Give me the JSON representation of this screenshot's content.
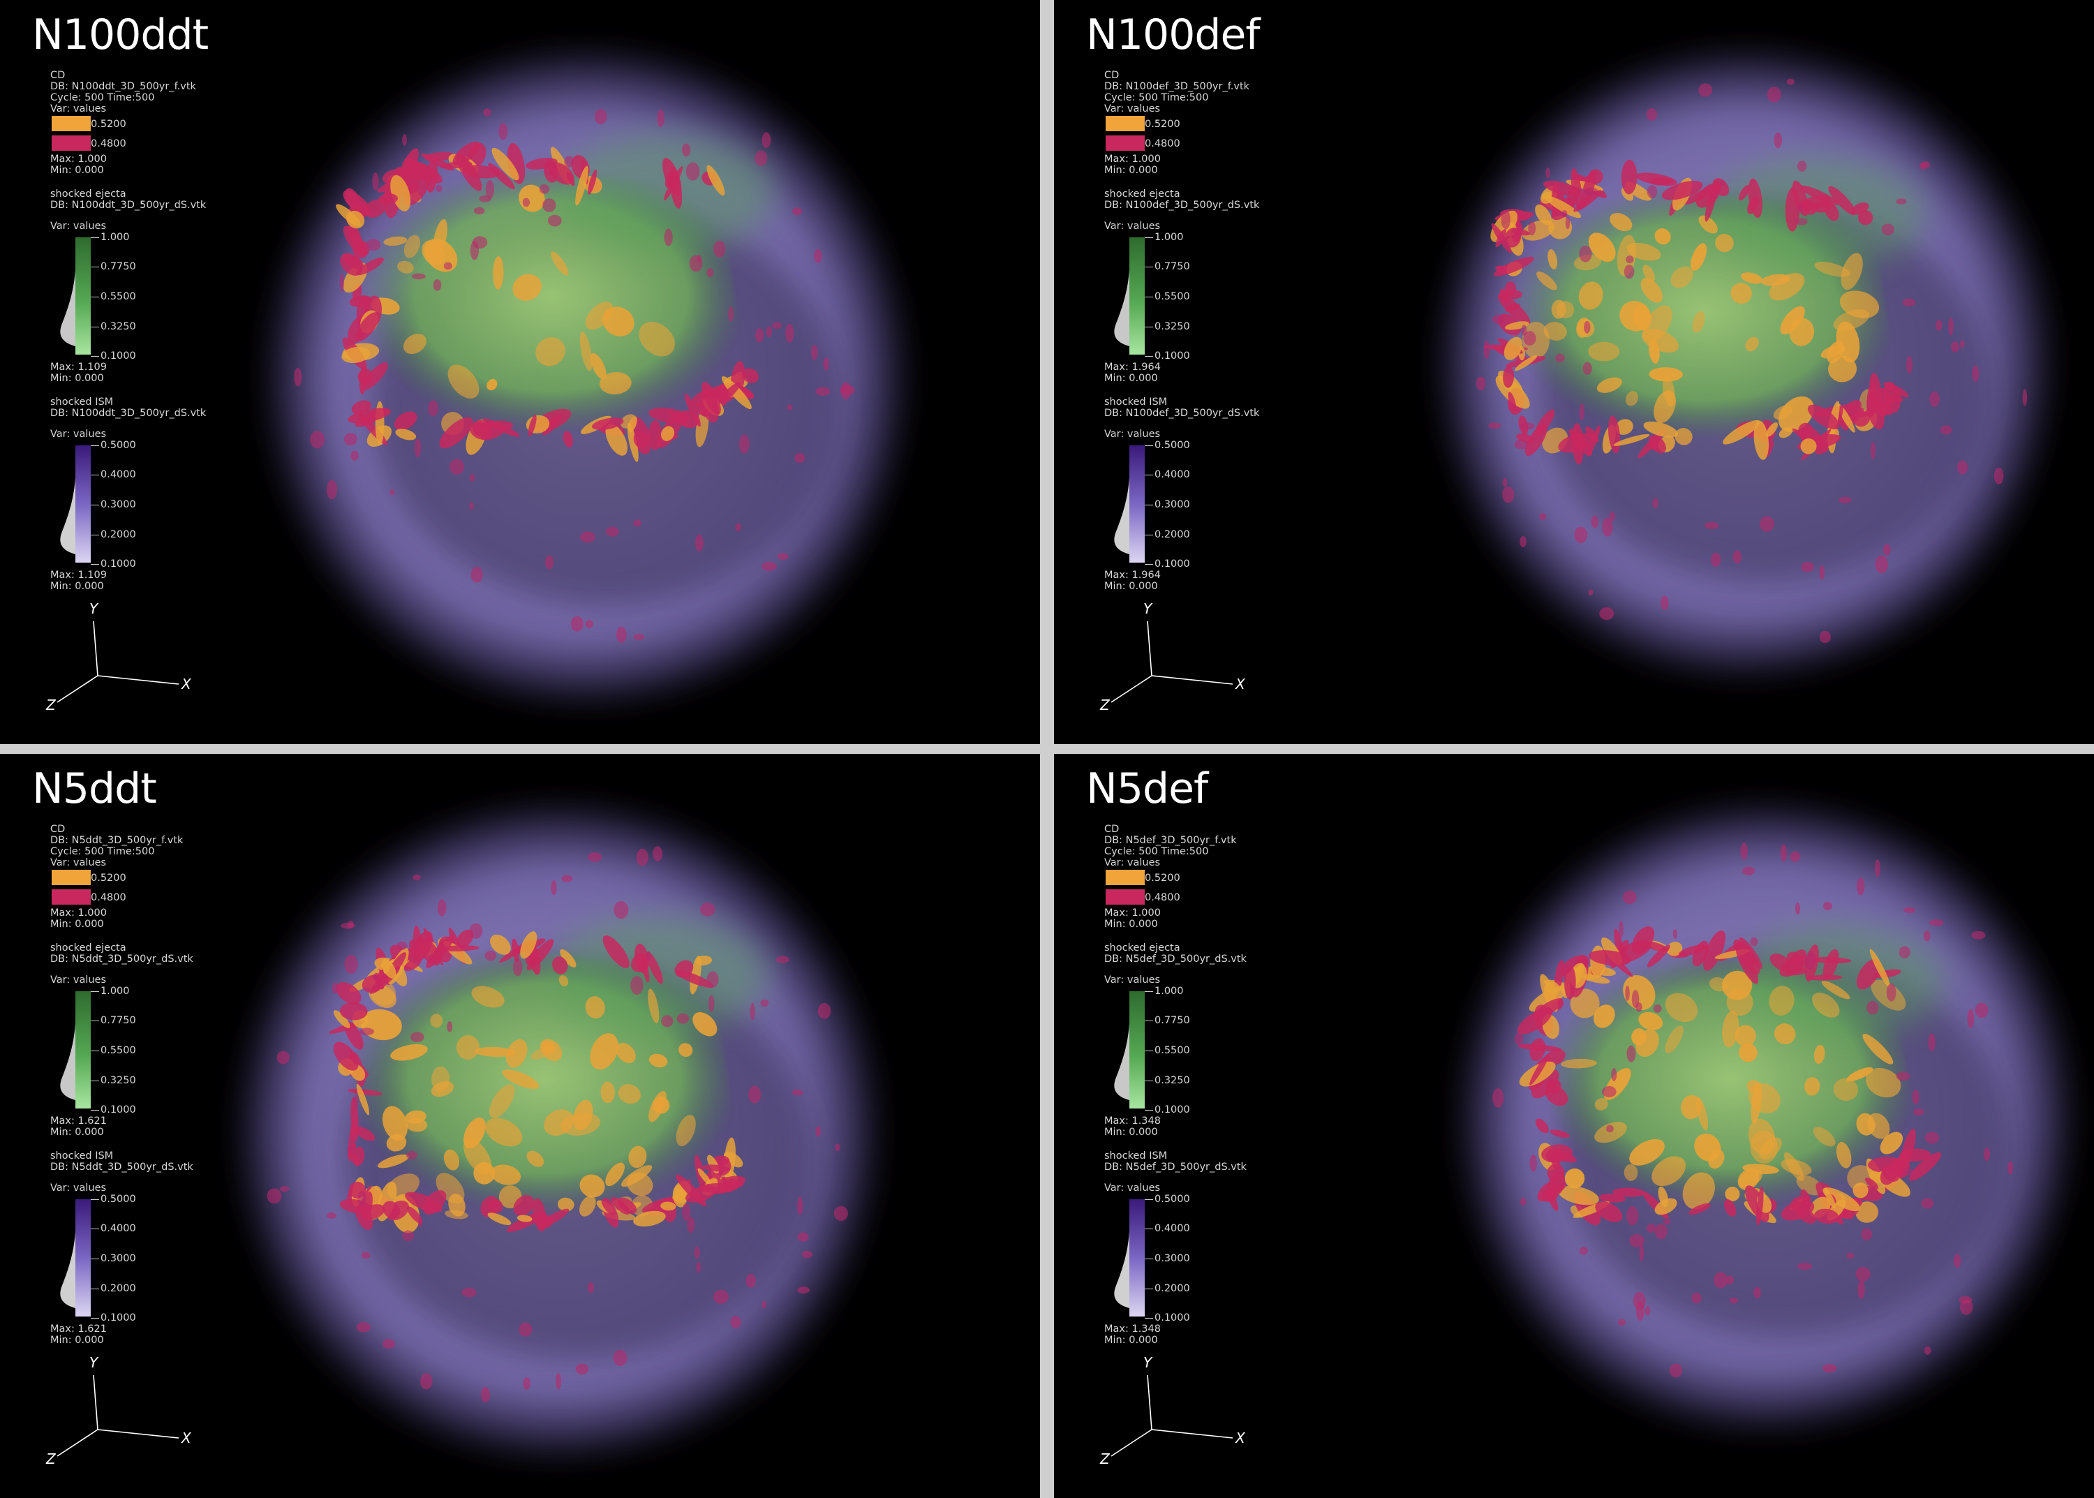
{
  "panels": [
    {
      "title": "N100ddt",
      "cd": {
        "header": "CD",
        "db": "DB: N100ddt_3D_500yr_f.vtk",
        "cycle": "Cycle: 500     Time:500",
        "var": "Var: values",
        "levels": [
          "0.5200",
          "0.4800"
        ],
        "max": "Max: 1.000",
        "min": "Min: 0.000"
      },
      "ejecta": {
        "header": "shocked ejecta",
        "db": "DB: N100ddt_3D_500yr_dS.vtk",
        "var": "Var: values",
        "ticks": [
          "1.000",
          "0.7750",
          "0.5500",
          "0.3250",
          "0.1000"
        ],
        "max": "Max: 1.109",
        "min": "Min: 0.000"
      },
      "ism": {
        "header": "shocked ISM",
        "db": "DB: N100ddt_3D_500yr_dS.vtk",
        "var": "Var: values",
        "ticks": [
          "0.5000",
          "0.4000",
          "0.3000",
          "0.2000",
          "0.1000"
        ],
        "max": "Max: 1.109",
        "min": "Min: 0.000"
      }
    },
    {
      "title": "N100def",
      "cd": {
        "header": "CD",
        "db": "DB: N100def_3D_500yr_f.vtk",
        "cycle": "Cycle: 500     Time:500",
        "var": "Var: values",
        "levels": [
          "0.5200",
          "0.4800"
        ],
        "max": "Max: 1.000",
        "min": "Min: 0.000"
      },
      "ejecta": {
        "header": "shocked ejecta",
        "db": "DB: N100def_3D_500yr_dS.vtk",
        "var": "Var: values",
        "ticks": [
          "1.000",
          "0.7750",
          "0.5500",
          "0.3250",
          "0.1000"
        ],
        "max": "Max: 1.964",
        "min": "Min: 0.000"
      },
      "ism": {
        "header": "shocked ISM",
        "db": "DB: N100def_3D_500yr_dS.vtk",
        "var": "Var: values",
        "ticks": [
          "0.5000",
          "0.4000",
          "0.3000",
          "0.2000",
          "0.1000"
        ],
        "max": "Max: 1.964",
        "min": "Min: 0.000"
      }
    },
    {
      "title": "N5ddt",
      "cd": {
        "header": "CD",
        "db": "DB: N5ddt_3D_500yr_f.vtk",
        "cycle": "Cycle: 500     Time:500",
        "var": "Var: values",
        "levels": [
          "0.5200",
          "0.4800"
        ],
        "max": "Max: 1.000",
        "min": "Min: 0.000"
      },
      "ejecta": {
        "header": "shocked ejecta",
        "db": "DB: N5ddt_3D_500yr_dS.vtk",
        "var": "Var: values",
        "ticks": [
          "1.000",
          "0.7750",
          "0.5500",
          "0.3250",
          "0.1000"
        ],
        "max": "Max: 1.621",
        "min": "Min: 0.000"
      },
      "ism": {
        "header": "shocked ISM",
        "db": "DB: N5ddt_3D_500yr_dS.vtk",
        "var": "Var: values",
        "ticks": [
          "0.5000",
          "0.4000",
          "0.3000",
          "0.2000",
          "0.1000"
        ],
        "max": "Max: 1.621",
        "min": "Min: 0.000"
      }
    },
    {
      "title": "N5def",
      "cd": {
        "header": "CD",
        "db": "DB: N5def_3D_500yr_f.vtk",
        "cycle": "Cycle: 500     Time:500",
        "var": "Var: values",
        "levels": [
          "0.5200",
          "0.4800"
        ],
        "max": "Max: 1.000",
        "min": "Min: 0.000"
      },
      "ejecta": {
        "header": "shocked ejecta",
        "db": "DB: N5def_3D_500yr_dS.vtk",
        "var": "Var: values",
        "ticks": [
          "1.000",
          "0.7750",
          "0.5500",
          "0.3250",
          "0.1000"
        ],
        "max": "Max: 1.348",
        "min": "Min: 0.000"
      },
      "ism": {
        "header": "shocked ISM",
        "db": "DB: N5def_3D_500yr_dS.vtk",
        "var": "Var: values",
        "ticks": [
          "0.5000",
          "0.4000",
          "0.3000",
          "0.2000",
          "0.1000"
        ],
        "max": "Max: 1.348",
        "min": "Min: 0.000"
      }
    }
  ],
  "axes_labels": {
    "y": "Y",
    "x": "X",
    "z": "Z"
  },
  "colors": {
    "cd_high": "#f0a43a",
    "cd_low": "#c8285e",
    "ejecta": "#4caf50",
    "ism": "#8f7fd0",
    "background": "#000000",
    "separator": "#cfcfcf"
  }
}
